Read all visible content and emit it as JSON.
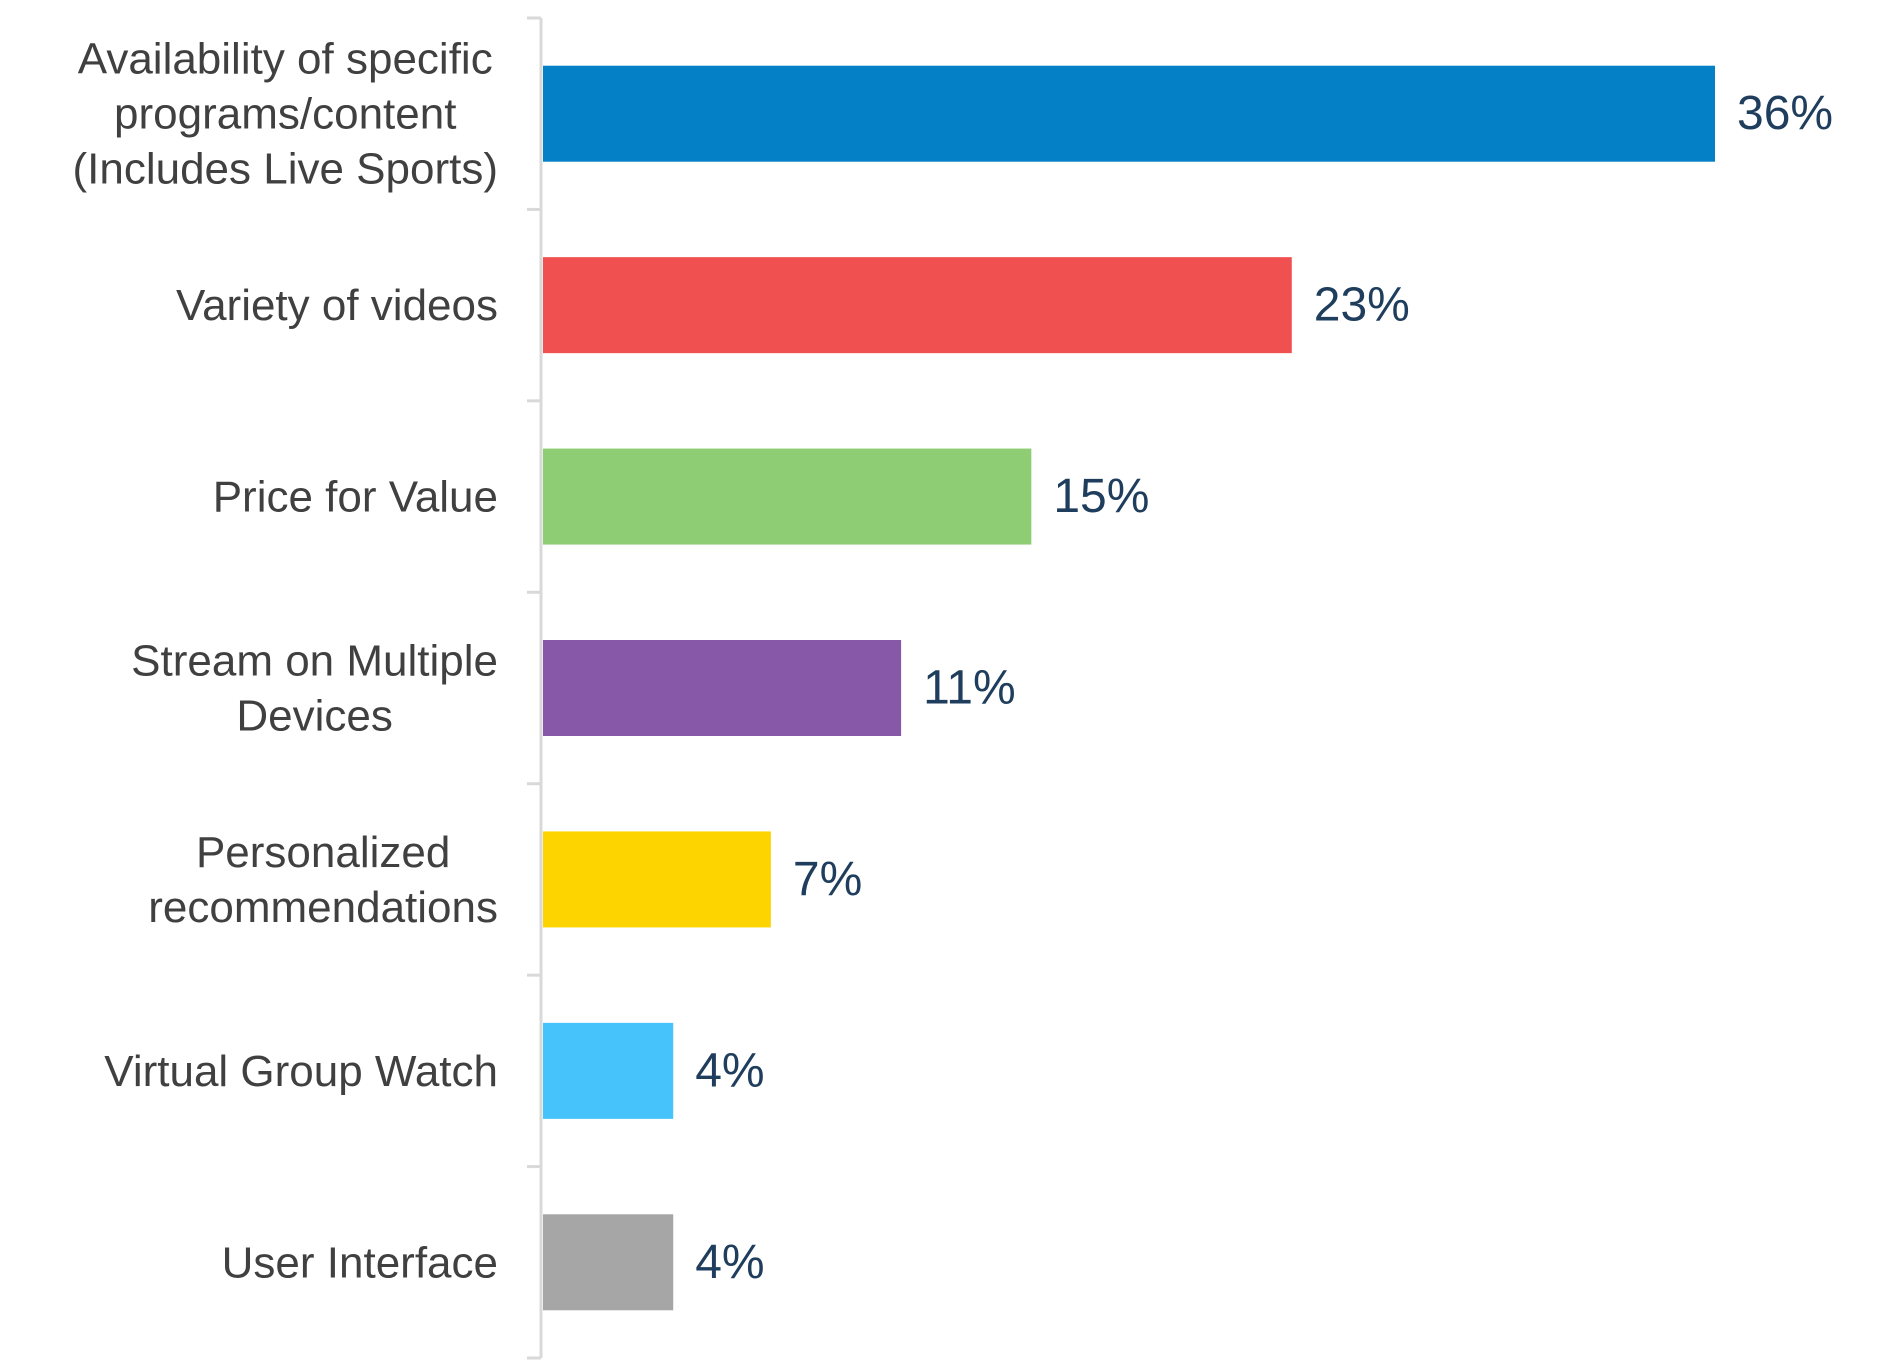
{
  "chart_data": {
    "type": "bar",
    "orientation": "horizontal",
    "title": "",
    "xlabel": "",
    "ylabel": "",
    "categories": [
      "Availability of specific programs/content (Includes Live Sports)",
      "Variety of videos",
      "Price for Value",
      "Stream on Multiple Devices",
      "Personalized recommendations",
      "Virtual Group Watch",
      "User Interface"
    ],
    "category_lines": [
      [
        "Availability of specific",
        "programs/content",
        "(Includes Live Sports)"
      ],
      [
        "Variety of videos"
      ],
      [
        "Price for Value"
      ],
      [
        "Stream on Multiple",
        "Devices"
      ],
      [
        "Personalized",
        "recommendations"
      ],
      [
        "Virtual Group Watch"
      ],
      [
        "User Interface"
      ]
    ],
    "values": [
      36,
      23,
      15,
      11,
      7,
      4,
      4
    ],
    "value_labels": [
      "36%",
      "23%",
      "15%",
      "11%",
      "7%",
      "4%",
      "4%"
    ],
    "bar_colors": [
      "#0481c6",
      "#f05150",
      "#8fcd74",
      "#8757a8",
      "#fdd400",
      "#46c3fa",
      "#a6a6a6"
    ],
    "label_color": "#1f3d5c",
    "category_color": "#404040",
    "axis_color": "#d9d9d9",
    "xlim": [
      0,
      36
    ],
    "grid": false,
    "legend": "none"
  }
}
